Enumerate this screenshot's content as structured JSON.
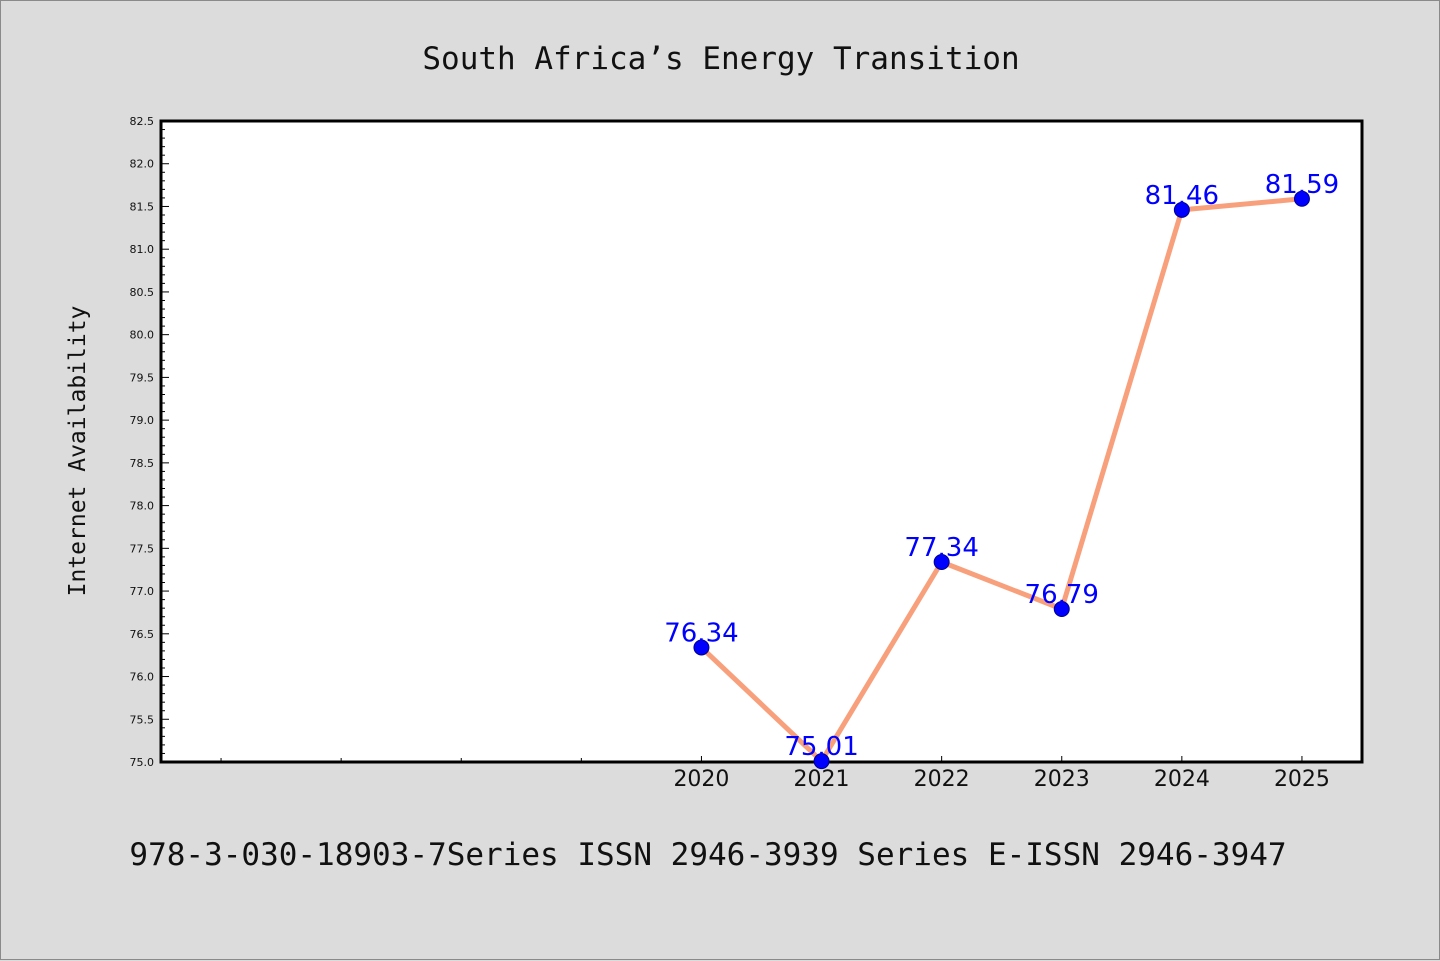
{
  "colors": {
    "background": "#dcdcdc",
    "plot_background": "#ffffff",
    "line": "#f8a07c",
    "marker": "#0000ff",
    "data_label": "#0000ff"
  },
  "chart_data": {
    "type": "line",
    "title": "South Africa’s Energy Transition",
    "xlabel": "",
    "ylabel": "Internet Availability",
    "x": [
      2020,
      2021,
      2022,
      2023,
      2024,
      2025
    ],
    "x_tick_labels": [
      "2020",
      "2021",
      "2022",
      "2023",
      "2024",
      "2025"
    ],
    "series": [
      {
        "values": [
          76.34,
          75.01,
          77.34,
          76.79,
          81.46,
          81.59
        ]
      }
    ],
    "data_labels": [
      "76.34",
      "75.01",
      "77.34",
      "76.79",
      "81.46",
      "81.59"
    ],
    "ylim": [
      75.0,
      82.5
    ],
    "xlim": [
      2015.5,
      2025.5
    ],
    "y_ticks": [
      "75.0",
      "75.5",
      "76.0",
      "76.5",
      "77.0",
      "77.5",
      "78.0",
      "78.5",
      "79.0",
      "79.5",
      "80.0",
      "80.5",
      "81.0",
      "81.5",
      "82.0",
      "82.5"
    ],
    "grid": false,
    "legend": "none",
    "marker": "circle"
  },
  "footer": "978-3-030-18903-7Series ISSN 2946-3939 Series E-ISSN 2946-3947"
}
